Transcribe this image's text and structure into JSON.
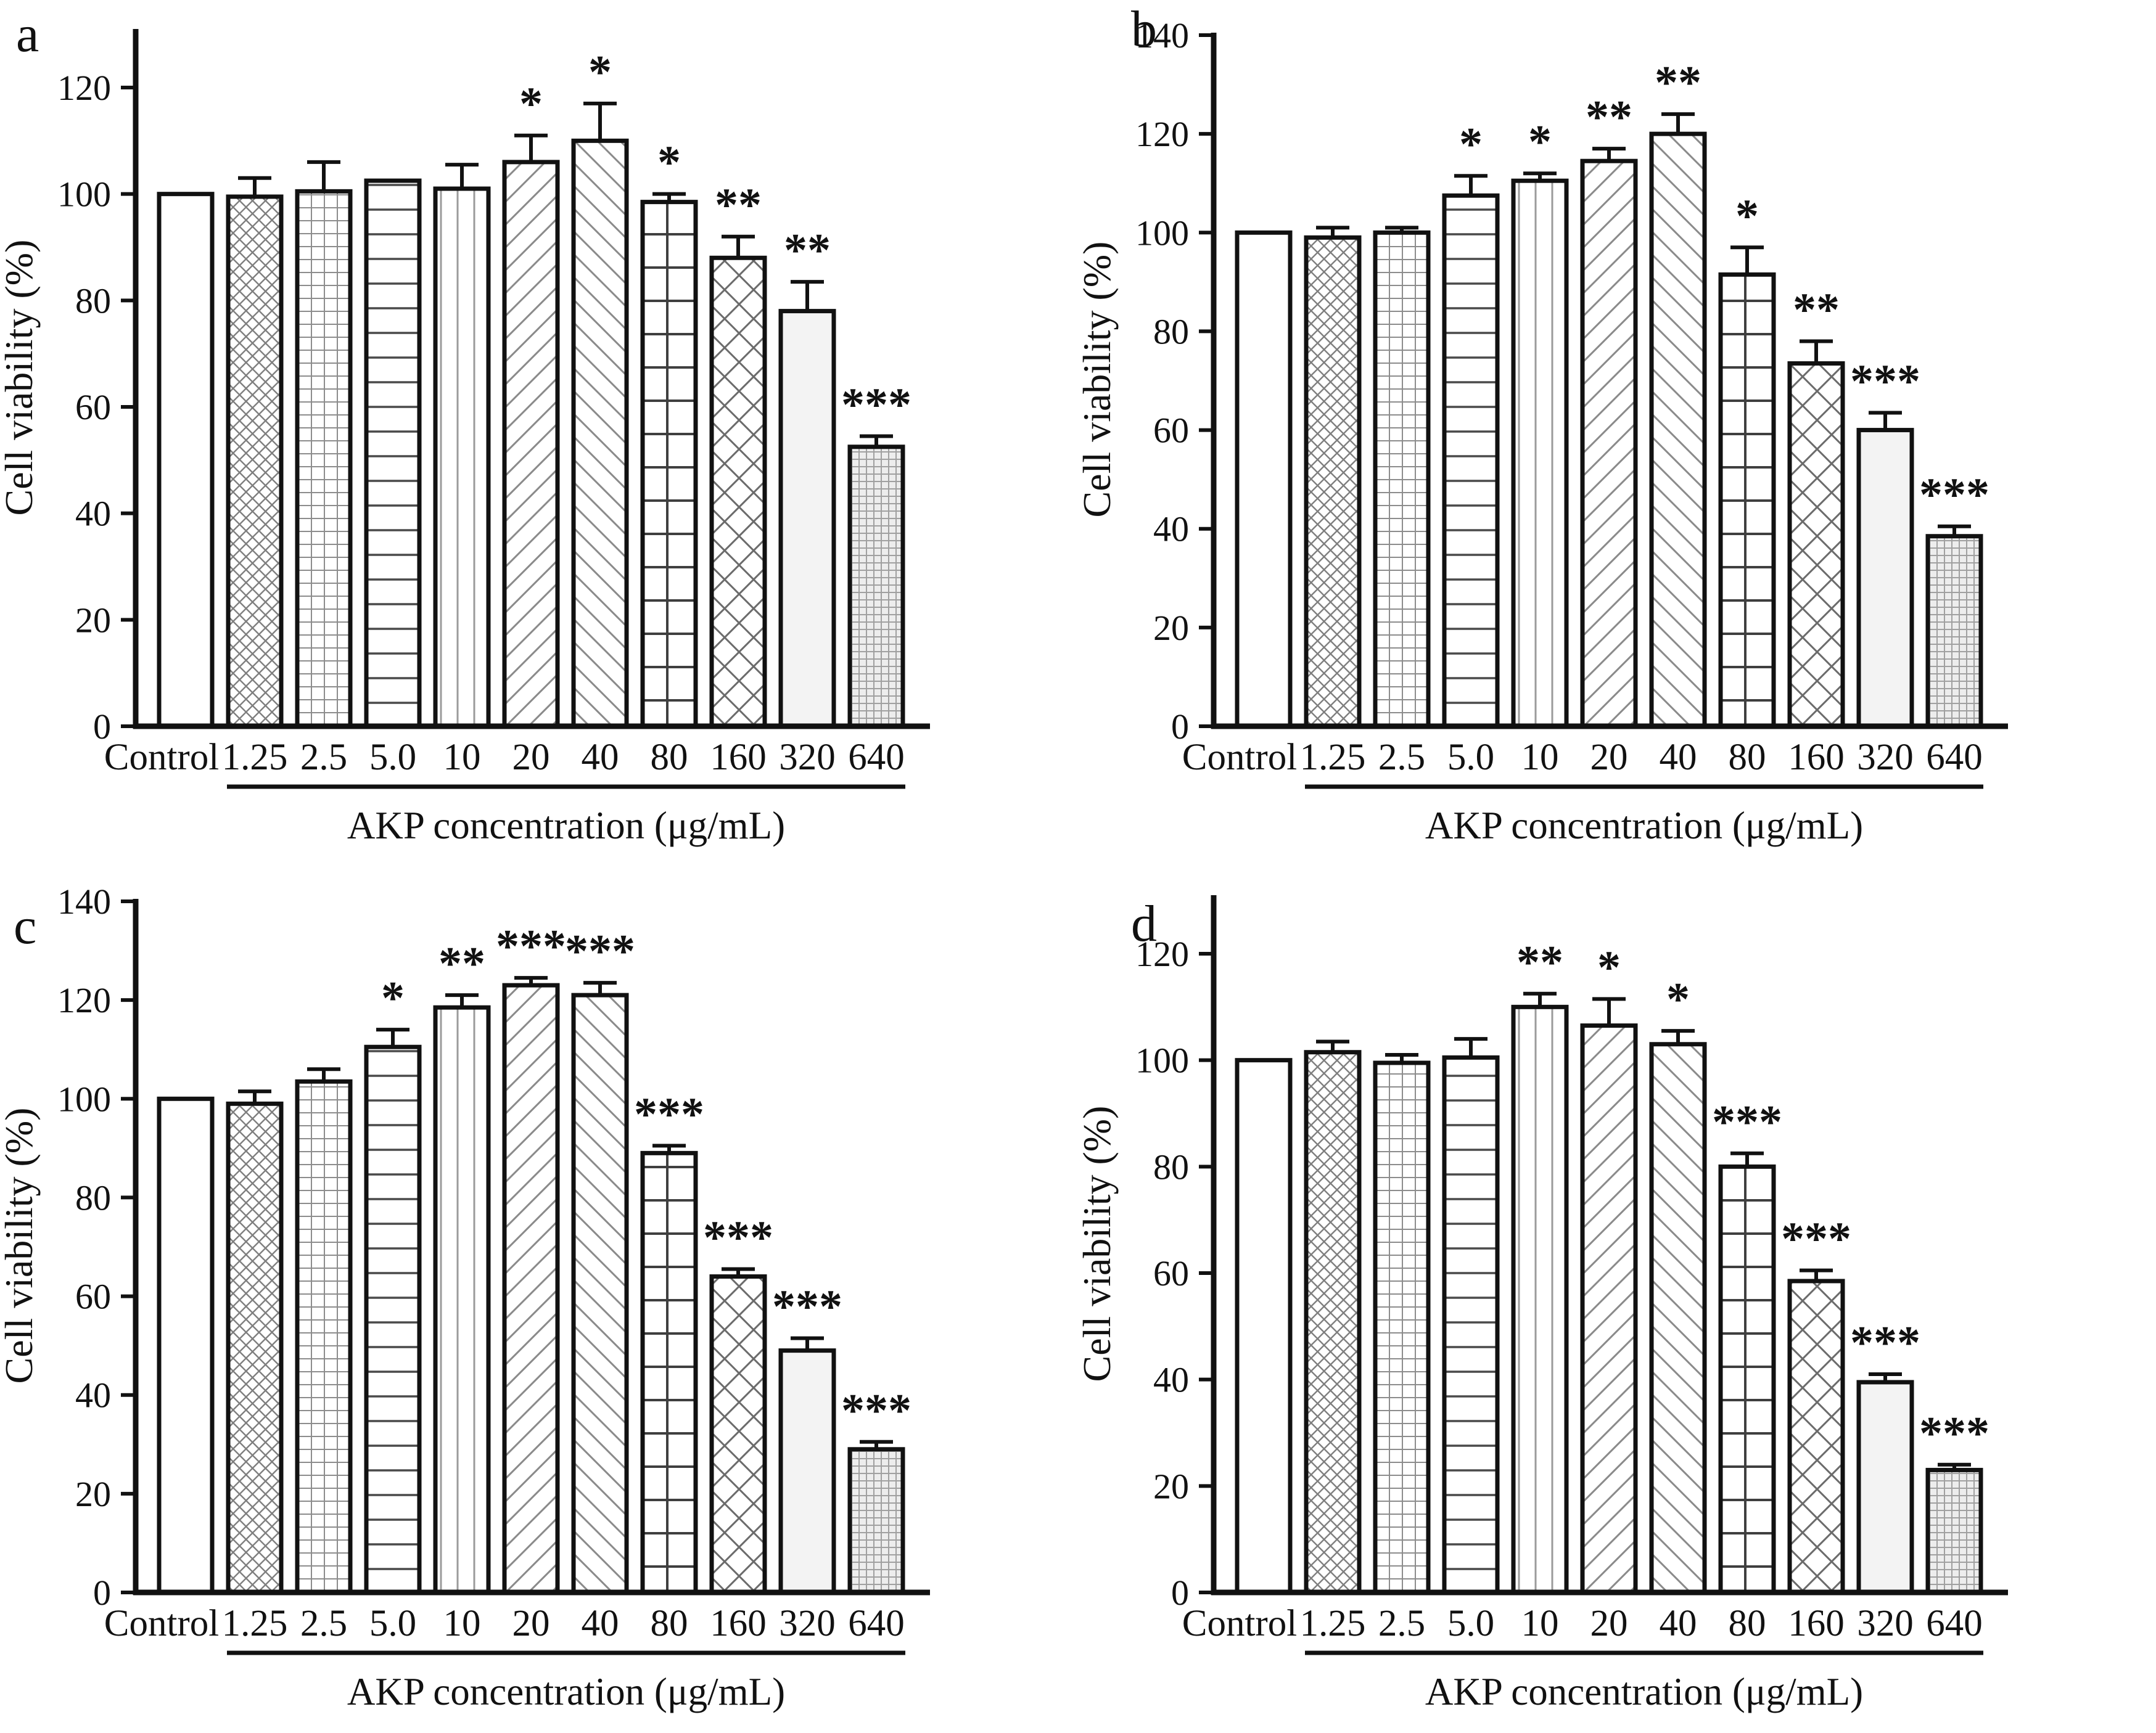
{
  "figure_colors": {
    "ink": "#111111",
    "pattern_gray": "#8a8a8a",
    "light_bar_fill": "#f3f3f3",
    "checker_bar_fill": "#ededed",
    "background": "#ffffff"
  },
  "chart_data": [
    {
      "type": "bar",
      "title": "a",
      "ylabel": "Cell viability (%)",
      "xlabel": "AKP concentration (μg/mL)",
      "categories": [
        "Control",
        "1.25",
        "2.5",
        "5.0",
        "10",
        "20",
        "40",
        "80",
        "160",
        "320",
        "640"
      ],
      "values": [
        100,
        99.5,
        100.5,
        102.5,
        101,
        106,
        110,
        98.5,
        88,
        78,
        52.5
      ],
      "errors": [
        0,
        3.5,
        5.5,
        0,
        4.5,
        5,
        7,
        1.5,
        4,
        5.5,
        2
      ],
      "significance": [
        "",
        "",
        "",
        "",
        "",
        "*",
        "*",
        "*",
        "**",
        "**",
        "***"
      ],
      "yticks": [
        0,
        20,
        40,
        60,
        80,
        100,
        120
      ],
      "ylim": [
        0,
        131
      ],
      "grid": false,
      "legend": "none",
      "bar_patterns": [
        "solid-white",
        "crosshatch-fine",
        "grid-fine",
        "horizontal-lines",
        "vertical-lines",
        "diagonal-up",
        "diagonal-down",
        "grid-large",
        "crosshatch-large",
        "plain-light",
        "checker-dense"
      ]
    },
    {
      "type": "bar",
      "title": "b",
      "ylabel": "Cell viability (%)",
      "xlabel": "AKP concentration (μg/mL)",
      "categories": [
        "Control",
        "1.25",
        "2.5",
        "5.0",
        "10",
        "20",
        "40",
        "80",
        "160",
        "320",
        "640"
      ],
      "values": [
        100,
        99,
        100,
        107.5,
        110.5,
        114.5,
        120,
        91.5,
        73.5,
        60,
        38.5
      ],
      "errors": [
        0,
        2,
        1,
        4,
        1.5,
        2.5,
        4,
        5.5,
        4.5,
        3.5,
        2
      ],
      "significance": [
        "",
        "",
        "",
        "*",
        "*",
        "**",
        "**",
        "*",
        "**",
        "***",
        "***"
      ],
      "yticks": [
        0,
        20,
        40,
        60,
        80,
        100,
        120,
        140
      ],
      "ylim": [
        0,
        140
      ],
      "grid": false,
      "legend": "none",
      "bar_patterns": [
        "solid-white",
        "crosshatch-fine",
        "grid-fine",
        "horizontal-lines",
        "vertical-lines",
        "diagonal-up",
        "diagonal-down",
        "grid-large",
        "crosshatch-large",
        "plain-light",
        "checker-dense"
      ]
    },
    {
      "type": "bar",
      "title": "c",
      "ylabel": "Cell viability (%)",
      "xlabel": "AKP concentration (μg/mL)",
      "categories": [
        "Control",
        "1.25",
        "2.5",
        "5.0",
        "10",
        "20",
        "40",
        "80",
        "160",
        "320",
        "640"
      ],
      "values": [
        100,
        99,
        103.5,
        110.5,
        118.5,
        123,
        121,
        89,
        64,
        49,
        29
      ],
      "errors": [
        0,
        2.5,
        2.5,
        3.5,
        2.5,
        1.5,
        2.5,
        1.5,
        1.5,
        2.5,
        1.5
      ],
      "significance": [
        "",
        "",
        "",
        "*",
        "**",
        "***",
        "***",
        "***",
        "***",
        "***",
        "***"
      ],
      "yticks": [
        0,
        20,
        40,
        60,
        80,
        100,
        120,
        140
      ],
      "ylim": [
        0,
        140
      ],
      "grid": false,
      "legend": "none",
      "bar_patterns": [
        "solid-white",
        "crosshatch-fine",
        "grid-fine",
        "horizontal-lines",
        "vertical-lines",
        "diagonal-up",
        "diagonal-down",
        "grid-large",
        "crosshatch-large",
        "plain-light",
        "checker-dense"
      ]
    },
    {
      "type": "bar",
      "title": "d",
      "ylabel": "Cell viability (%)",
      "xlabel": "AKP concentration (μg/mL)",
      "categories": [
        "Control",
        "1.25",
        "2.5",
        "5.0",
        "10",
        "20",
        "40",
        "80",
        "160",
        "320",
        "640"
      ],
      "values": [
        100,
        101.5,
        99.5,
        100.5,
        110,
        106.5,
        103,
        80,
        58.5,
        39.5,
        23
      ],
      "errors": [
        0,
        2,
        1.5,
        3.5,
        2.5,
        5,
        2.5,
        2.5,
        2,
        1.5,
        1
      ],
      "significance": [
        "",
        "",
        "",
        "",
        "**",
        "*",
        "*",
        "***",
        "***",
        "***",
        "***"
      ],
      "yticks": [
        0,
        20,
        40,
        60,
        80,
        100,
        120
      ],
      "ylim": [
        0,
        131
      ],
      "grid": false,
      "legend": "none",
      "bar_patterns": [
        "solid-white",
        "crosshatch-fine",
        "grid-fine",
        "horizontal-lines",
        "vertical-lines",
        "diagonal-up",
        "diagonal-down",
        "grid-large",
        "crosshatch-large",
        "plain-light",
        "checker-dense"
      ]
    }
  ]
}
